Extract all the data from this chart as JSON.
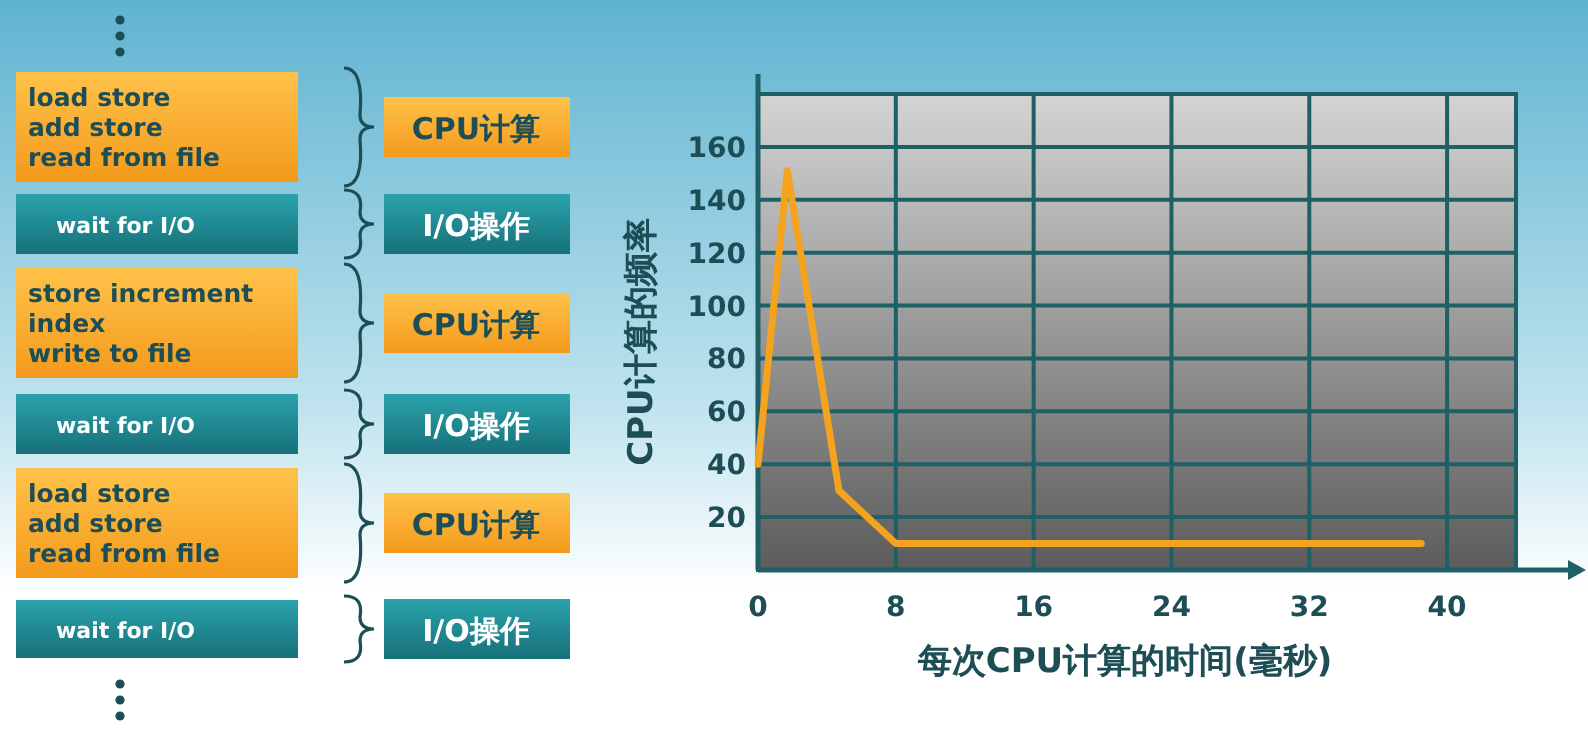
{
  "chart_data": [
    {
      "type": "other",
      "annotations": [
        "load store\nadd store\nread from file",
        "CPU计算",
        "wait for I/O",
        "I/O操作",
        "store increment\nindex\nwrite to file",
        "CPU计算",
        "wait for I/O",
        "I/O操作",
        "load store\nadd store\nread from file",
        "CPU计算",
        "wait for I/O",
        "I/O操作"
      ]
    },
    {
      "type": "line",
      "xlabel": "每次CPU计算的时间(毫秒)",
      "ylabel": "CPU计算的频率",
      "x": [
        0,
        1.7,
        4.7,
        8,
        38.5
      ],
      "values": [
        40,
        151,
        30,
        10,
        10
      ],
      "color": "#f5a31f",
      "xlim": [
        0,
        44
      ],
      "ylim": [
        0,
        180
      ],
      "xticks": [
        0,
        8,
        16,
        24,
        32,
        40
      ],
      "yticks": [
        {
          "value": 0,
          "label": null
        },
        20,
        40,
        60,
        80,
        100,
        120,
        140,
        160,
        {
          "value": 180,
          "label": null
        }
      ],
      "grid": true
    }
  ]
}
